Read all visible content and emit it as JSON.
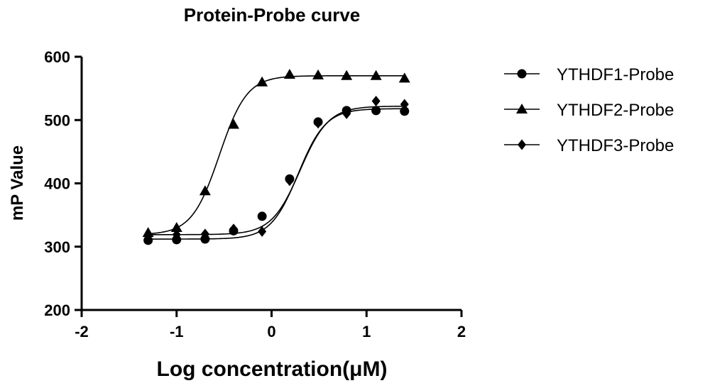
{
  "chart_data": {
    "type": "scatter",
    "title": "Protein-Probe curve",
    "xlabel": "Log concentration(μM)",
    "ylabel": "mP Value",
    "xlim": [
      -2,
      2
    ],
    "ylim": [
      200,
      600
    ],
    "xticks": [
      -2,
      -1,
      0,
      1,
      2
    ],
    "yticks": [
      200,
      300,
      400,
      500,
      600
    ],
    "legend_position": "right",
    "grid": false,
    "series": [
      {
        "name": "YTHDF1-Probe",
        "marker": "circle",
        "x": [
          -1.3,
          -1.0,
          -0.7,
          -0.4,
          -0.1,
          0.19,
          0.49,
          0.79,
          1.1,
          1.4
        ],
        "y": [
          310,
          311,
          312,
          325,
          348,
          407,
          497,
          515,
          515,
          514
        ],
        "fit": {
          "bottom": 312,
          "top": 518,
          "logEC50": 0.28,
          "hill": 3.0
        }
      },
      {
        "name": "YTHDF2-Probe",
        "marker": "triangle",
        "x": [
          -1.3,
          -1.0,
          -0.7,
          -0.4,
          -0.1,
          0.19,
          0.49,
          0.79,
          1.1,
          1.4
        ],
        "y": [
          322,
          330,
          388,
          493,
          560,
          572,
          571,
          570,
          570,
          566
        ],
        "fit": {
          "bottom": 319,
          "top": 570,
          "logEC50": -0.55,
          "hill": 3.0
        }
      },
      {
        "name": "YTHDF3-Probe",
        "marker": "diamond",
        "x": [
          -1.3,
          -1.0,
          -0.7,
          -0.4,
          -0.1,
          0.19,
          0.49,
          0.79,
          1.1,
          1.4
        ],
        "y": [
          318,
          319,
          320,
          328,
          324,
          404,
          495,
          510,
          530,
          525
        ],
        "fit": {
          "bottom": 319,
          "top": 522,
          "logEC50": 0.3,
          "hill": 2.9
        }
      }
    ]
  }
}
